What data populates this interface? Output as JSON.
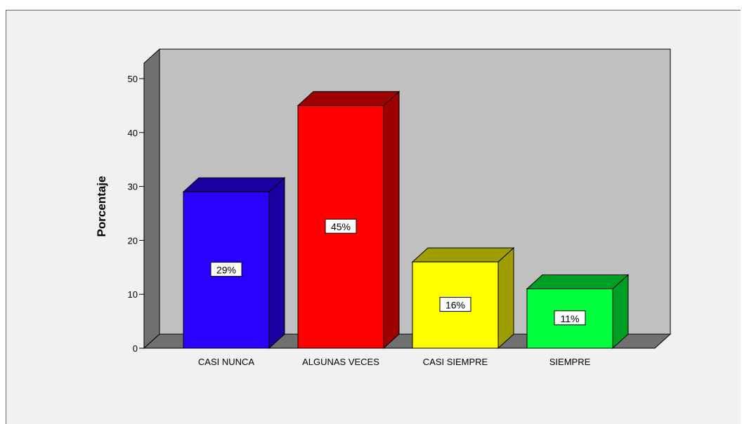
{
  "chart_data": {
    "type": "bar",
    "three_d": true,
    "categories": [
      "CASI NUNCA",
      "ALGUNAS VECES",
      "CASI SIEMPRE",
      "SIEMPRE"
    ],
    "values": [
      29,
      45,
      16,
      11
    ],
    "data_labels": [
      "29%",
      "45%",
      "16%",
      "11%"
    ],
    "colors": [
      "#2a00ff",
      "#ff0000",
      "#ffff00",
      "#00ff3c"
    ],
    "title": "",
    "xlabel": "",
    "ylabel": "Porcentaje",
    "ylim": [
      0,
      50
    ],
    "yticks": [
      0,
      10,
      20,
      30,
      40,
      50
    ],
    "ytick_labels": [
      "0",
      "10",
      "20",
      "30",
      "40",
      "50"
    ],
    "grid": false,
    "background_color": "#c0c0c0"
  }
}
